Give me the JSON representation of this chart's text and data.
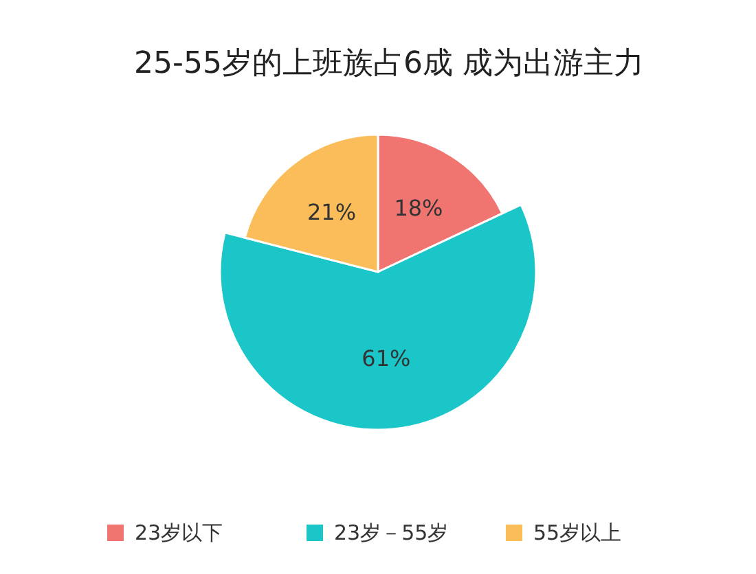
{
  "chart_data": {
    "type": "pie",
    "title": "25-55岁的上班族占6成 成为出游主力",
    "categories": [
      "23岁以下",
      "23岁－55岁",
      "55岁以上"
    ],
    "values": [
      18,
      61,
      21
    ],
    "colors": [
      "#f07470",
      "#1bc6c9",
      "#fbbd5a"
    ],
    "value_labels": [
      "18%",
      "61%",
      "21%"
    ],
    "legend": "bottom"
  }
}
